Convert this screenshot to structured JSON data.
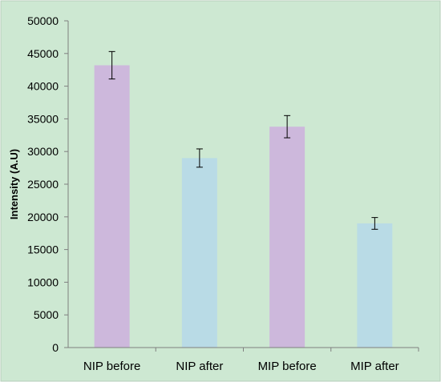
{
  "chart_data": {
    "type": "bar",
    "title": "",
    "xlabel": "",
    "ylabel": "Intensity (A.U)",
    "categories": [
      "NIP before",
      "NIP after",
      "MIP  before",
      "MIP after"
    ],
    "values": [
      43200,
      29000,
      33800,
      19000
    ],
    "error": [
      2100,
      1400,
      1700,
      900
    ],
    "ylim": [
      0,
      50000
    ],
    "yticks": [
      "0",
      "5000",
      "10000",
      "15000",
      "20000",
      "25000",
      "30000",
      "35000",
      "40000",
      "45000",
      "50000"
    ],
    "bar_colors": [
      "#CDB8DC",
      "#B9DBE6",
      "#CDB8DC",
      "#B9DBE6"
    ],
    "background_color": "#CDE8D2",
    "grid": false,
    "legend": "none"
  }
}
